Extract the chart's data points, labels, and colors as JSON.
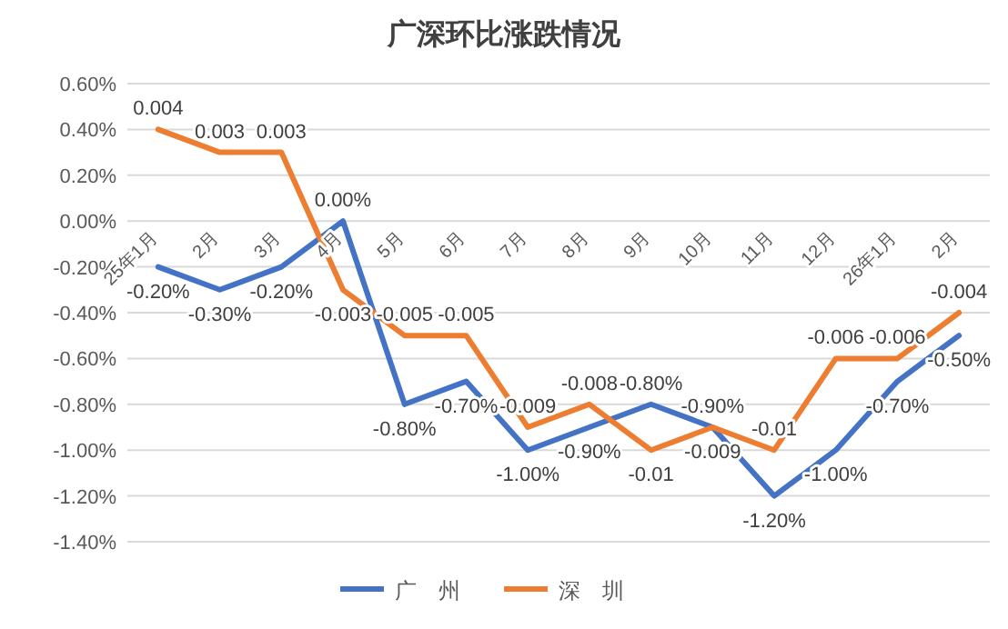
{
  "chart_data": {
    "type": "line",
    "title": "广深环比涨跌情况",
    "categories": [
      "25年1月",
      "2月",
      "3月",
      "4月",
      "5月",
      "6月",
      "7月",
      "8月",
      "9月",
      "10月",
      "11月",
      "12月",
      "26年1月",
      "2月"
    ],
    "series": [
      {
        "name": "广　州",
        "color": "#4472c4",
        "values": [
          -0.002,
          -0.003,
          -0.002,
          0.0,
          -0.008,
          -0.007,
          -0.01,
          -0.009,
          -0.008,
          -0.009,
          -0.012,
          -0.01,
          -0.007,
          -0.005
        ],
        "value_labels": [
          "-0.20%",
          "-0.30%",
          "-0.20%",
          "0.00%",
          "-0.80%",
          "-0.70%",
          "-1.00%",
          "-0.90%",
          "-0.80%",
          "-0.90%",
          "-1.20%",
          "-1.00%",
          "-0.70%",
          "-0.50%"
        ]
      },
      {
        "name": "深　圳",
        "color": "#ed7d31",
        "values": [
          0.004,
          0.003,
          0.003,
          -0.003,
          -0.005,
          -0.005,
          -0.009,
          -0.008,
          -0.01,
          -0.009,
          -0.01,
          -0.006,
          -0.006,
          -0.004
        ],
        "value_labels": [
          "0.004",
          "0.003",
          "0.003",
          "-0.003",
          "-0.005",
          "-0.005",
          "-0.009",
          "-0.008",
          "-0.01",
          "-0.009",
          "-0.01",
          "-0.006",
          "-0.006",
          "-0.004"
        ]
      }
    ],
    "ylim": [
      -0.014,
      0.006
    ],
    "yticks": [
      {
        "value": 0.006,
        "label": "0.60%"
      },
      {
        "value": 0.004,
        "label": "0.40%"
      },
      {
        "value": 0.002,
        "label": "0.20%"
      },
      {
        "value": 0,
        "label": "0.00%"
      },
      {
        "value": -0.002,
        "label": "-0.20%"
      },
      {
        "value": -0.004,
        "label": "-0.40%"
      },
      {
        "value": -0.006,
        "label": "-0.60%"
      },
      {
        "value": -0.008,
        "label": "-0.80%"
      },
      {
        "value": -0.01,
        "label": "-1.00%"
      },
      {
        "value": -0.012,
        "label": "-1.20%"
      },
      {
        "value": -0.014,
        "label": "-1.40%"
      }
    ],
    "grid": "y",
    "legend": "bottom",
    "marker": "none",
    "line_style": "solid"
  }
}
